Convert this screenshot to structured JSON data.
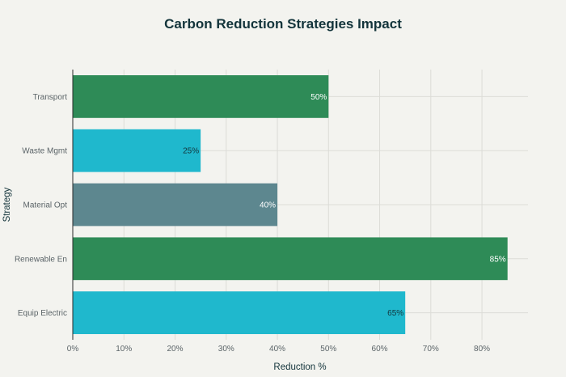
{
  "chart_data": {
    "type": "bar",
    "orientation": "horizontal",
    "title": "Carbon Reduction Strategies Impact",
    "xlabel": "Reduction %",
    "ylabel": "Strategy",
    "categories": [
      "Transport",
      "Waste Mgmt",
      "Material Opt",
      "Renewable En",
      "Equip Electric"
    ],
    "values": [
      50,
      25,
      40,
      85,
      65
    ],
    "value_labels": [
      "50%",
      "25%",
      "40%",
      "85%",
      "65%"
    ],
    "colors": [
      "#2e8b57",
      "#1fb8cd",
      "#5d878f",
      "#2e8b57",
      "#1fb8cd"
    ],
    "label_colors": [
      "#ffffff",
      "#13343b",
      "#ffffff",
      "#ffffff",
      "#13343b"
    ],
    "xlim": [
      0,
      89
    ],
    "xticks": [
      0,
      10,
      20,
      30,
      40,
      50,
      60,
      70,
      80
    ],
    "xtick_labels": [
      "0%",
      "10%",
      "20%",
      "30%",
      "40%",
      "50%",
      "60%",
      "70%",
      "80%"
    ],
    "grid": true,
    "legend": "none"
  }
}
